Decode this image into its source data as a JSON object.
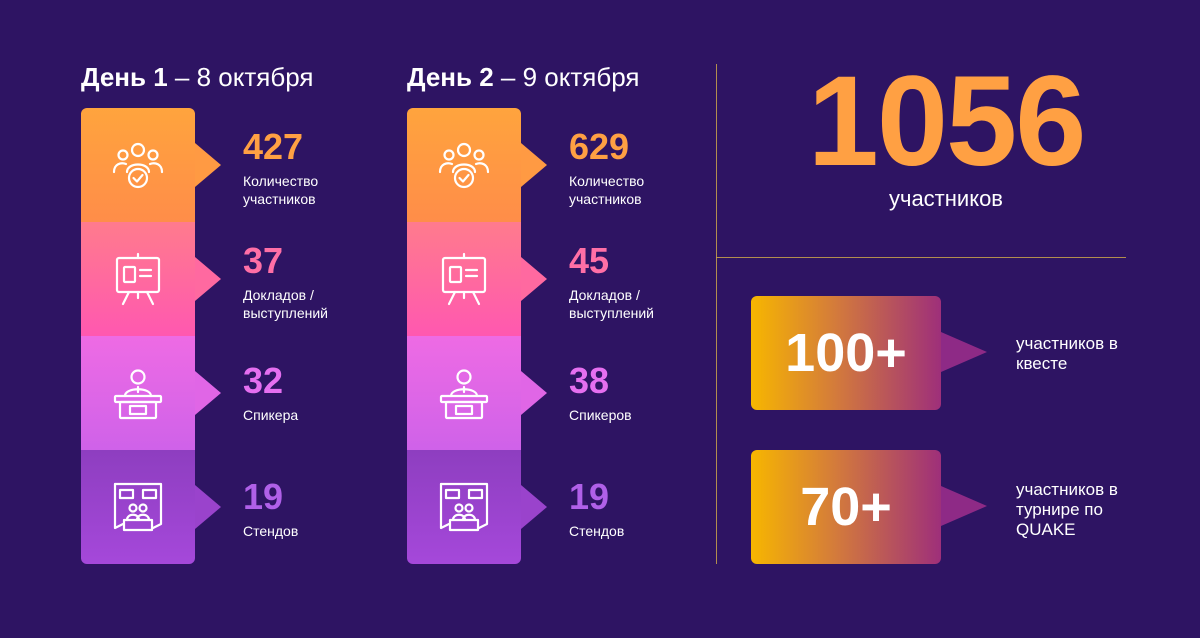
{
  "colors": {
    "background": "#2e1463",
    "accent_orange": "#ffa043",
    "segment_1": "#ff9a43",
    "segment_2": "#ff69a0",
    "segment_3": "#e066e6",
    "segment_4": "#9a43cc",
    "divider": "#c9a34a"
  },
  "days": [
    {
      "title_bold": "День 1",
      "title_rest": " – 8 октября",
      "stats": [
        {
          "icon": "people-group-check-icon",
          "value": "427",
          "label": "Количество участников"
        },
        {
          "icon": "presentation-board-icon",
          "value": "37",
          "label": "Докладов / выступлений"
        },
        {
          "icon": "speaker-podium-icon",
          "value": "32",
          "label": "Спикера"
        },
        {
          "icon": "exhibition-booth-icon",
          "value": "19",
          "label": "Стендов"
        }
      ]
    },
    {
      "title_bold": "День 2",
      "title_rest": " – 9 октября",
      "stats": [
        {
          "icon": "people-group-check-icon",
          "value": "629",
          "label": "Количество участников"
        },
        {
          "icon": "presentation-board-icon",
          "value": "45",
          "label": "Докладов / выступлений"
        },
        {
          "icon": "speaker-podium-icon",
          "value": "38",
          "label": "Спикеров"
        },
        {
          "icon": "exhibition-booth-icon",
          "value": "19",
          "label": "Стендов"
        }
      ]
    }
  ],
  "total": {
    "value": "1056",
    "label": "участников"
  },
  "badges": [
    {
      "value": "100+",
      "label": "участников в квесте"
    },
    {
      "value": "70+",
      "label": "участников в турнире по QUAKE"
    }
  ]
}
